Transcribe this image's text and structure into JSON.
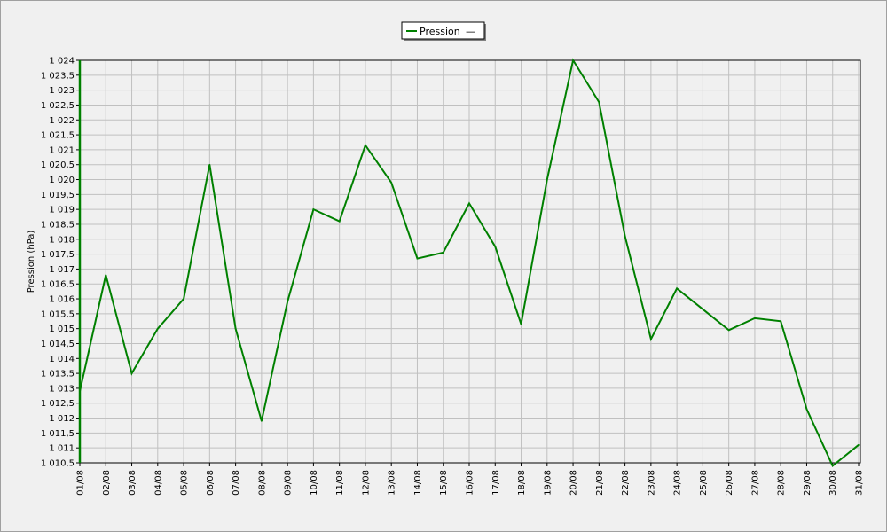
{
  "chart_data": {
    "type": "line",
    "title": "",
    "xlabel": "",
    "ylabel": "Pression (hPa)",
    "ylim": [
      1010.5,
      1024
    ],
    "y_step": 0.5,
    "grid": true,
    "legend_placement": "top-center",
    "legend_extra_marker": "—",
    "categories": [
      "01/08",
      "02/08",
      "03/08",
      "04/08",
      "05/08",
      "06/08",
      "07/08",
      "08/08",
      "09/08",
      "10/08",
      "11/08",
      "12/08",
      "13/08",
      "14/08",
      "15/08",
      "16/08",
      "17/08",
      "18/08",
      "19/08",
      "20/08",
      "21/08",
      "22/08",
      "23/08",
      "24/08",
      "25/08",
      "26/08",
      "27/08",
      "28/08",
      "29/08",
      "30/08",
      "31/08"
    ],
    "series": [
      {
        "name": "Pression",
        "color": "#008000",
        "values": [
          1012.9,
          1016.8,
          1013.5,
          1015.0,
          1016.0,
          1020.5,
          1015.0,
          1011.9,
          1015.9,
          1019.0,
          1018.6,
          1021.15,
          1019.9,
          1017.35,
          1017.55,
          1019.2,
          1017.75,
          1015.15,
          1020.0,
          1024.0,
          1022.6,
          1018.1,
          1014.65,
          1016.35,
          1015.65,
          1014.95,
          1015.35,
          1015.25,
          1012.3,
          1010.4,
          1011.1
        ]
      }
    ],
    "y_tick_labels": [
      "1 010,5",
      "1 011",
      "1 011,5",
      "1 012",
      "1 012,5",
      "1 013",
      "1 013,5",
      "1 014",
      "1 014,5",
      "1 015",
      "1 015,5",
      "1 016",
      "1 016,5",
      "1 017",
      "1 017,5",
      "1 018",
      "1 018,5",
      "1 019",
      "1 019,5",
      "1 020",
      "1 020,5",
      "1 021",
      "1 021,5",
      "1 022",
      "1 022,5",
      "1 023",
      "1 023,5",
      "1 024"
    ],
    "colors": {
      "background": "#f0f0f0",
      "plot_bg": "#f0f0f0",
      "grid": "#c0c0c0",
      "axis": "#000000",
      "line": "#008000"
    }
  }
}
